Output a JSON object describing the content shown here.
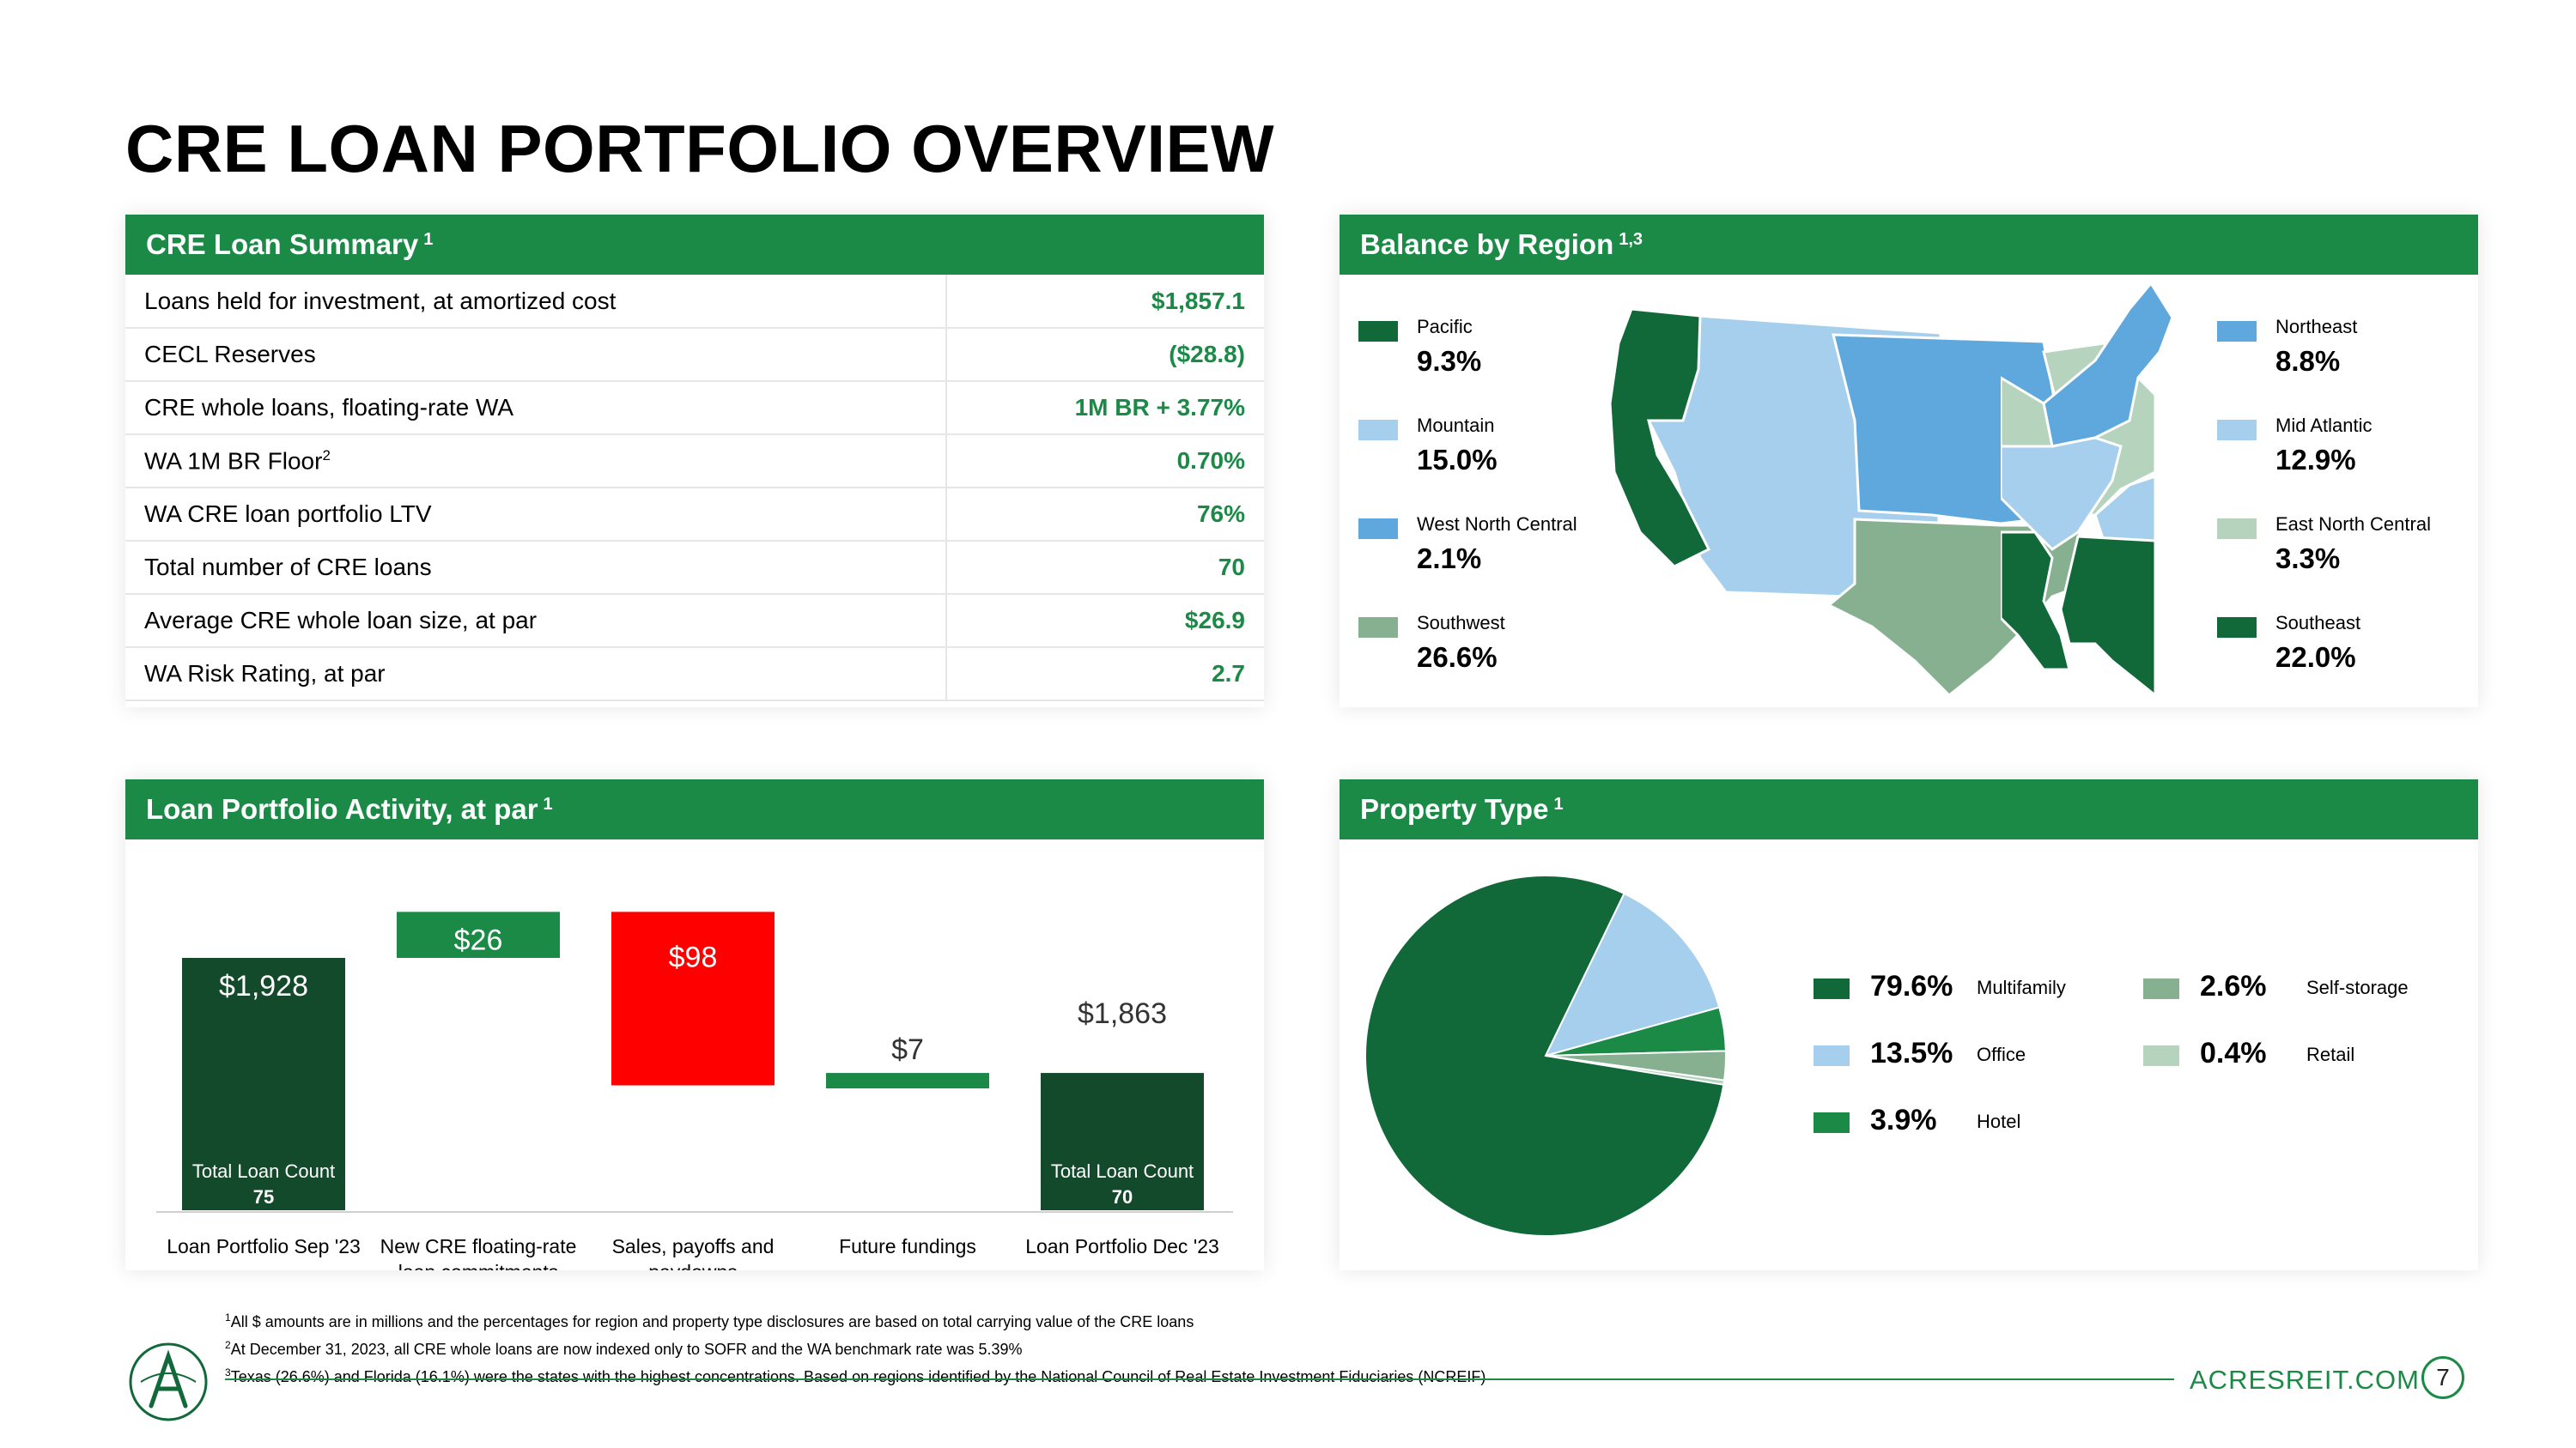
{
  "page_title": "CRE LOAN PORTFOLIO OVERVIEW",
  "summary": {
    "title": "CRE Loan Summary",
    "title_sup": "1",
    "rows": [
      {
        "label": "Loans held for investment, at amortized cost",
        "sup": "",
        "value": "$1,857.1"
      },
      {
        "label": "CECL Reserves",
        "sup": "",
        "value": "($28.8)"
      },
      {
        "label": "CRE whole loans, floating-rate WA",
        "sup": "",
        "value": "1M BR + 3.77%"
      },
      {
        "label": "WA 1M BR Floor",
        "sup": "2",
        "value": "0.70%"
      },
      {
        "label": "WA CRE loan portfolio LTV",
        "sup": "",
        "value": "76%"
      },
      {
        "label": "Total number of CRE loans",
        "sup": "",
        "value": "70"
      },
      {
        "label": "Average CRE whole loan size, at par",
        "sup": "",
        "value": "$26.9"
      },
      {
        "label": "WA Risk Rating, at par",
        "sup": "",
        "value": "2.7"
      }
    ]
  },
  "region": {
    "title": "Balance by Region",
    "title_sup": "1,3",
    "items": [
      {
        "label": "Pacific",
        "pct": "9.3%",
        "color": "#11693a"
      },
      {
        "label": "Mountain",
        "pct": "15.0%",
        "color": "#a6cfee"
      },
      {
        "label": "West North Central",
        "pct": "2.1%",
        "color": "#5ea8de"
      },
      {
        "label": "Southwest",
        "pct": "26.6%",
        "color": "#87b091"
      },
      {
        "label": "Northeast",
        "pct": "8.8%",
        "color": "#5ea8de"
      },
      {
        "label": "Mid Atlantic",
        "pct": "12.9%",
        "color": "#a6cfee"
      },
      {
        "label": "East North Central",
        "pct": "3.3%",
        "color": "#b5d3bd"
      },
      {
        "label": "Southeast",
        "pct": "22.0%",
        "color": "#11693a"
      }
    ]
  },
  "activity": {
    "title": "Loan Portfolio Activity, at par",
    "title_sup": "1",
    "total_loan_count_label": "Total Loan Count",
    "chart_data": {
      "type": "waterfall",
      "categories": [
        "Loan Portfolio Sep '23",
        "New CRE floating-rate loan commitments",
        "Sales, payoffs and paydowns",
        "Future fundings",
        "Loan Portfolio Dec '23"
      ],
      "categories_display": [
        [
          "Loan Portfolio Sep '23"
        ],
        [
          "New CRE floating-rate",
          "loan commitments"
        ],
        [
          "Sales, payoffs and",
          "paydowns"
        ],
        [
          "Future fundings"
        ],
        [
          "Loan Portfolio Dec '23"
        ]
      ],
      "values": [
        1928,
        26,
        -98,
        7,
        1863
      ],
      "value_labels": [
        "$1,928",
        "$26",
        "$98",
        "$7",
        "$1,863"
      ],
      "kinds": [
        "total",
        "increase",
        "decrease",
        "increase",
        "total"
      ],
      "loan_counts": [
        "75",
        "",
        "",
        "",
        "70"
      ],
      "colors": {
        "total": "#144a2c",
        "increase": "#1a8a46",
        "decrease": "#ff0000"
      }
    }
  },
  "property": {
    "title": "Property Type",
    "title_sup": "1",
    "chart_data": {
      "type": "pie",
      "labels": [
        "Multifamily",
        "Office",
        "Hotel",
        "Self-storage",
        "Retail"
      ],
      "values": [
        79.6,
        13.5,
        3.9,
        2.6,
        0.4
      ],
      "pct_labels": [
        "79.6%",
        "13.5%",
        "3.9%",
        "2.6%",
        "0.4%"
      ],
      "colors": [
        "#11693a",
        "#a6cfee",
        "#1a8a46",
        "#87b091",
        "#b5d3bd"
      ]
    }
  },
  "footnotes": [
    {
      "sup": "1",
      "text": "All $ amounts are in millions and the percentages for region and property type disclosures are based on total carrying value of the CRE loans"
    },
    {
      "sup": "2",
      "text": "At December 31, 2023, all CRE whole loans are now indexed only to SOFR and the WA benchmark rate was 5.39%"
    },
    {
      "sup": "3",
      "text": "Texas (26.6%) and Florida (16.1%) were the states with the highest concentrations.  Based on regions identified by the National Council of Real Estate Investment Fiduciaries (NCREIF)"
    }
  ],
  "footer": {
    "website": "ACRESREIT.COM",
    "page_number": "7"
  }
}
